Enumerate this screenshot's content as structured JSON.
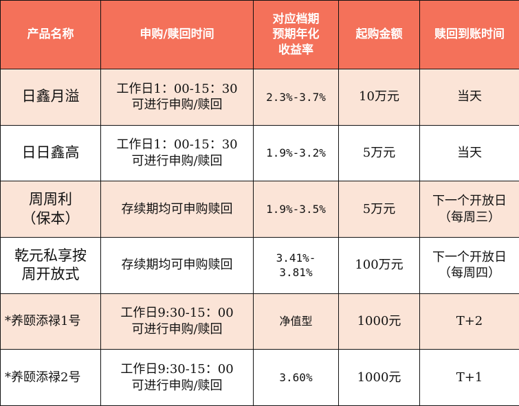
{
  "header": {
    "product_name": "产品名称",
    "subscription_time": "申购/赎回时间",
    "yield_line1": "对应档期",
    "yield_line2": "预期年化",
    "yield_line3": "收益率",
    "min_amount": "起购金额",
    "settlement": "赎回到账时间"
  },
  "rows": [
    {
      "name_l1": "日鑫月溢",
      "name_l2": "",
      "time_l1": "工作日1：00-15：30",
      "time_l2": "可进行申购/赎回",
      "yield_l1": "2.3%-3.7%",
      "yield_l2": "",
      "amount": "10万元",
      "settle_l1": "当天",
      "settle_l2": ""
    },
    {
      "name_l1": "日日鑫高",
      "name_l2": "",
      "time_l1": "工作日1：00-15：30",
      "time_l2": "可进行申购/赎回",
      "yield_l1": "1.9%-3.2%",
      "yield_l2": "",
      "amount": "5万元",
      "settle_l1": "当天",
      "settle_l2": ""
    },
    {
      "name_l1": "周周利",
      "name_l2": "（保本）",
      "time_l1": "存续期均可申购赎回",
      "time_l2": "",
      "yield_l1": "1.9%-3.5%",
      "yield_l2": "",
      "amount": "5万元",
      "settle_l1": "下一个开放日",
      "settle_l2": "（每周三）"
    },
    {
      "name_l1": "乾元私享按",
      "name_l2": "周开放式",
      "time_l1": "存续期均可申购赎回",
      "time_l2": "",
      "yield_l1": "3.41%-",
      "yield_l2": "3.81%",
      "amount": "100万元",
      "settle_l1": "下一个开放日",
      "settle_l2": "（每周四）"
    },
    {
      "name_l1": "*养颐添禄1号",
      "name_l2": "",
      "time_l1": "工作日9:30-15：00",
      "time_l2": "可进行申购/赎回",
      "yield_l1": "净值型",
      "yield_l2": "",
      "amount": "1000元",
      "settle_l1": "T+2",
      "settle_l2": ""
    },
    {
      "name_l1": "*养颐添禄2号",
      "name_l2": "",
      "time_l1": "工作日9:30-15：00",
      "time_l2": "可进行申购/赎回",
      "yield_l1": "3.60%",
      "yield_l2": "",
      "amount": "1000元",
      "settle_l1": "T+1",
      "settle_l2": ""
    }
  ],
  "colors": {
    "header_bg": "#f4715a",
    "header_text": "#ffffff",
    "alt_row_bg": "#fbe4d7",
    "row_bg": "#ffffff",
    "border": "#111111"
  }
}
